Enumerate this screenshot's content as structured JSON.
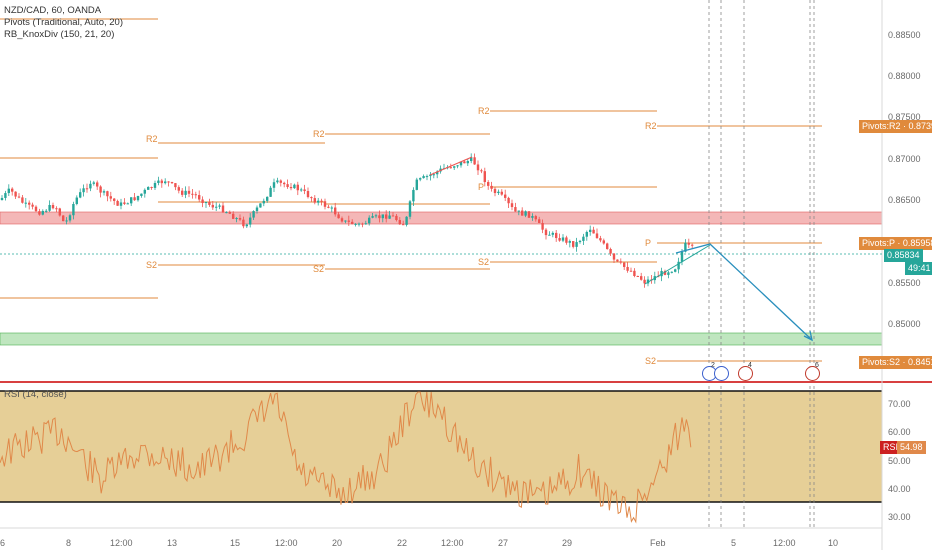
{
  "header": {
    "symbol": "NZD/CAD, 60, OANDA",
    "pivots_indicator": "Pivots (Traditional, Auto, 20)",
    "knox_indicator": "RB_KnoxDiv (150, 21, 20)"
  },
  "price_axis": {
    "ticks": [
      "0.88500",
      "0.88000",
      "0.87500",
      "0.87000",
      "0.86500",
      "0.86000",
      "0.85500",
      "0.85000"
    ],
    "tags": {
      "r2": "Pivots:R2 · 0.87397",
      "p": "Pivots:P · 0.85958",
      "last": "0.85834",
      "countdown": "49:41",
      "s2": "Pivots:S2 · 0.84519"
    }
  },
  "pivot_labels": {
    "r2": "R2",
    "p": "P",
    "s2": "S2"
  },
  "rsi": {
    "legend": "RSI (14, close)",
    "ticks": [
      "70.00",
      "60.00",
      "50.00",
      "40.00",
      "30.00"
    ],
    "tag_name": "RSI",
    "tag_value": "54.98"
  },
  "time_axis": {
    "labels": [
      "6",
      "8",
      "12:00",
      "13",
      "15",
      "12:00",
      "20",
      "22",
      "12:00",
      "27",
      "29",
      "Feb",
      "5",
      "12:00",
      "10"
    ]
  },
  "events": {
    "e1": "2",
    "e2": "4",
    "e3": "6"
  },
  "colors": {
    "pivot": "#e08a3c",
    "resistance_zone": "#f4a3a3",
    "support_zone": "#a8dca8",
    "rsi_band": "#e6c98a",
    "rsi_line": "#e0894a",
    "arrow": "#2a8fbd",
    "candle_up": "#26a69a",
    "candle_down": "#ef5350"
  }
}
